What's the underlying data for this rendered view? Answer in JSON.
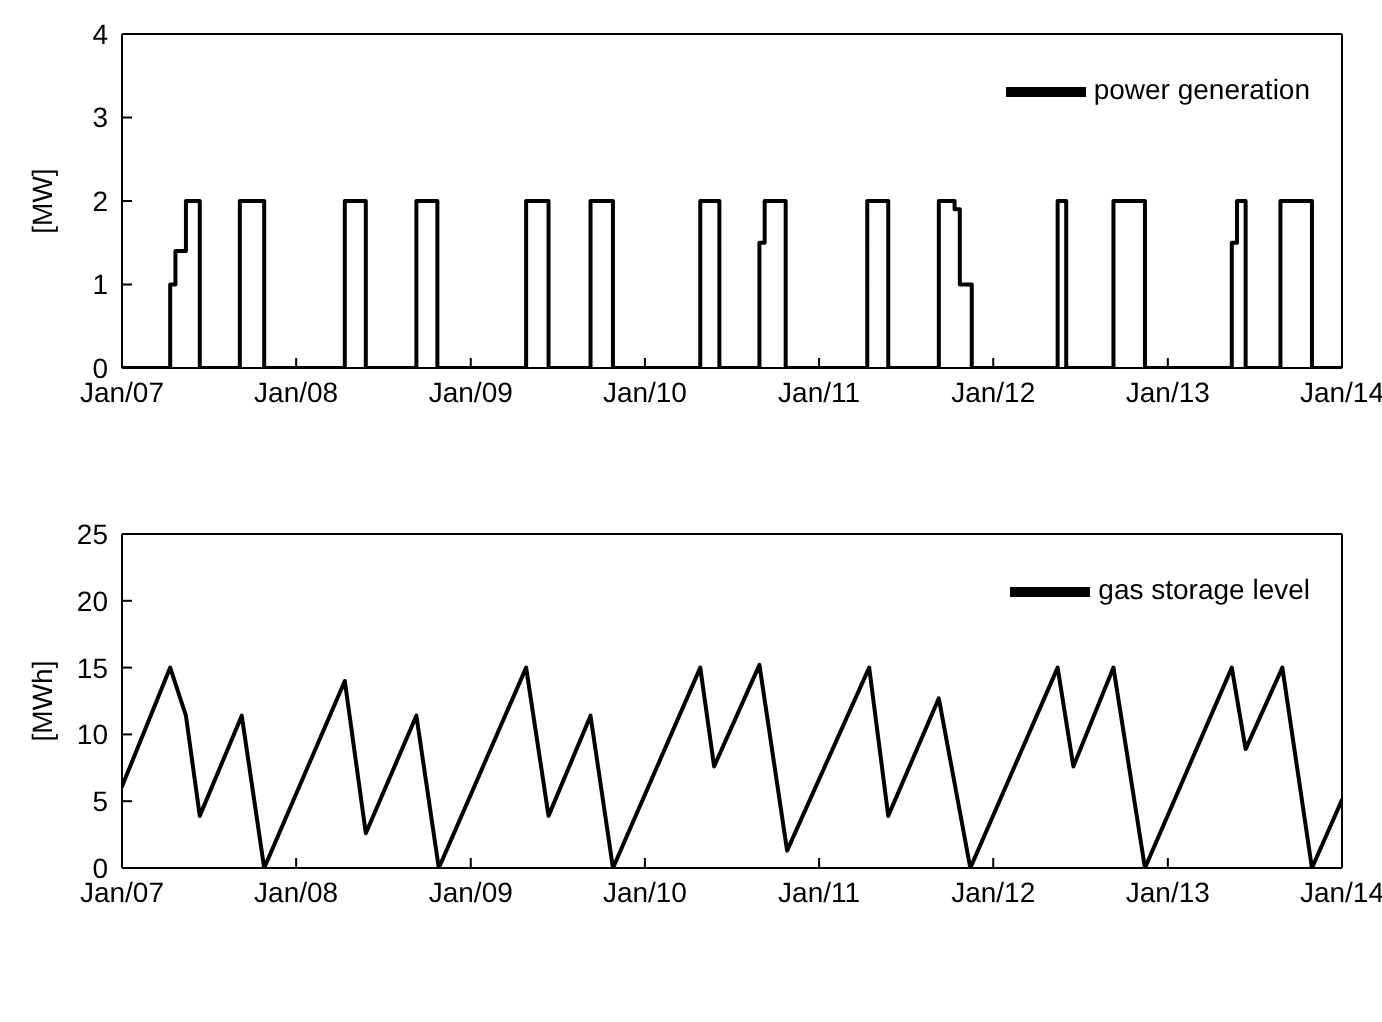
{
  "chart_data": [
    {
      "type": "step",
      "ylabel": "[MW]",
      "xlim": [
        "2007-01-01",
        "2014-01-01"
      ],
      "xticks": [
        {
          "value": "2007-01-01",
          "label": "Jan/07"
        },
        {
          "value": "2008-01-01",
          "label": "Jan/08"
        },
        {
          "value": "2009-01-01",
          "label": "Jan/09"
        },
        {
          "value": "2010-01-01",
          "label": "Jan/10"
        },
        {
          "value": "2011-01-01",
          "label": "Jan/11"
        },
        {
          "value": "2012-01-01",
          "label": "Jan/12"
        },
        {
          "value": "2013-01-01",
          "label": "Jan/13"
        },
        {
          "value": "2014-01-01",
          "label": "Jan/14"
        }
      ],
      "ylim": [
        0,
        4
      ],
      "yticks": [
        0,
        1,
        2,
        3,
        4
      ],
      "grid": false,
      "legend": "top right",
      "marker": "none",
      "series": [
        {
          "name": "power generation",
          "color": "#000000",
          "x": [
            "2007-01-01",
            "2007-04-12",
            "2007-04-23",
            "2007-05-15",
            "2007-06-13",
            "2007-09-05",
            "2007-10-26",
            "2008-04-12",
            "2008-05-26",
            "2008-09-09",
            "2008-10-23",
            "2009-04-27",
            "2009-06-13",
            "2009-09-09",
            "2009-10-26",
            "2010-04-27",
            "2010-06-06",
            "2010-08-29",
            "2010-09-09",
            "2010-10-23",
            "2011-04-12",
            "2011-05-26",
            "2011-09-09",
            "2011-10-12",
            "2011-10-23",
            "2011-11-17",
            "2012-05-15",
            "2012-06-02",
            "2012-09-09",
            "2012-11-14",
            "2013-05-15",
            "2013-05-26",
            "2013-06-13",
            "2013-08-25",
            "2013-10-30",
            "2014-01-01"
          ],
          "values": [
            0,
            1,
            1.4,
            2,
            0,
            2,
            0,
            2,
            0,
            2,
            0,
            2,
            0,
            2,
            0,
            2,
            0,
            1.5,
            2,
            0,
            2,
            0,
            2,
            1.9,
            1,
            0,
            2,
            0,
            2,
            0,
            1.5,
            2,
            0,
            2,
            0,
            0
          ]
        }
      ]
    },
    {
      "type": "line",
      "ylabel": "[MWh]",
      "xlim": [
        "2007-01-01",
        "2014-01-01"
      ],
      "xticks": [
        {
          "value": "2007-01-01",
          "label": "Jan/07"
        },
        {
          "value": "2008-01-01",
          "label": "Jan/08"
        },
        {
          "value": "2009-01-01",
          "label": "Jan/09"
        },
        {
          "value": "2010-01-01",
          "label": "Jan/10"
        },
        {
          "value": "2011-01-01",
          "label": "Jan/11"
        },
        {
          "value": "2012-01-01",
          "label": "Jan/12"
        },
        {
          "value": "2013-01-01",
          "label": "Jan/13"
        },
        {
          "value": "2014-01-01",
          "label": "Jan/14"
        }
      ],
      "ylim": [
        0,
        25
      ],
      "yticks": [
        0,
        5,
        10,
        15,
        20,
        25
      ],
      "grid": false,
      "legend": "top right",
      "marker": "none",
      "series": [
        {
          "name": "gas storage level",
          "color": "#000000",
          "x": [
            "2007-01-01",
            "2007-04-12",
            "2007-05-15",
            "2007-06-13",
            "2007-09-09",
            "2007-10-26",
            "2008-04-12",
            "2008-05-26",
            "2008-09-09",
            "2008-10-26",
            "2009-04-27",
            "2009-06-13",
            "2009-09-09",
            "2009-10-26",
            "2010-04-27",
            "2010-05-26",
            "2010-08-29",
            "2010-10-26",
            "2011-04-16",
            "2011-05-26",
            "2011-09-09",
            "2011-11-14",
            "2012-05-15",
            "2012-06-17",
            "2012-09-09",
            "2012-11-14",
            "2013-05-15",
            "2013-06-13",
            "2013-08-29",
            "2013-10-30",
            "2014-01-01"
          ],
          "values": [
            6.1,
            15,
            11.4,
            3.9,
            11.4,
            0,
            14,
            2.6,
            11.4,
            0,
            15,
            3.9,
            11.4,
            0,
            15,
            7.6,
            15.2,
            1.3,
            15,
            3.9,
            12.7,
            0,
            15,
            7.6,
            15,
            0,
            15,
            8.9,
            15,
            0,
            5.1
          ]
        }
      ]
    }
  ]
}
